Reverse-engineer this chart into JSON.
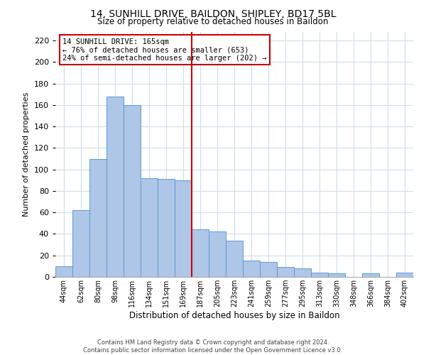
{
  "title": "14, SUNHILL DRIVE, BAILDON, SHIPLEY, BD17 5BL",
  "subtitle": "Size of property relative to detached houses in Baildon",
  "xlabel": "Distribution of detached houses by size in Baildon",
  "ylabel": "Number of detached properties",
  "bar_labels": [
    "44sqm",
    "62sqm",
    "80sqm",
    "98sqm",
    "116sqm",
    "134sqm",
    "151sqm",
    "169sqm",
    "187sqm",
    "205sqm",
    "223sqm",
    "241sqm",
    "259sqm",
    "277sqm",
    "295sqm",
    "313sqm",
    "330sqm",
    "348sqm",
    "366sqm",
    "384sqm",
    "402sqm"
  ],
  "bar_values": [
    10,
    62,
    110,
    168,
    160,
    92,
    91,
    90,
    44,
    42,
    34,
    15,
    14,
    9,
    8,
    4,
    3,
    0,
    3,
    0,
    4
  ],
  "bar_color": "#aec6e8",
  "bar_edge_color": "#5b9bd5",
  "vline_pos": 7.5,
  "vline_color": "#cc0000",
  "ylim": [
    0,
    228
  ],
  "yticks": [
    0,
    20,
    40,
    60,
    80,
    100,
    120,
    140,
    160,
    180,
    200,
    220
  ],
  "annotation_title": "14 SUNHILL DRIVE: 165sqm",
  "annotation_line1": "← 76% of detached houses are smaller (653)",
  "annotation_line2": "24% of semi-detached houses are larger (202) →",
  "annotation_box_color": "#ffffff",
  "annotation_box_edge": "#cc0000",
  "footer_line1": "Contains HM Land Registry data © Crown copyright and database right 2024.",
  "footer_line2": "Contains public sector information licensed under the Open Government Licence v3.0.",
  "background_color": "#ffffff",
  "grid_color": "#d0dde8"
}
